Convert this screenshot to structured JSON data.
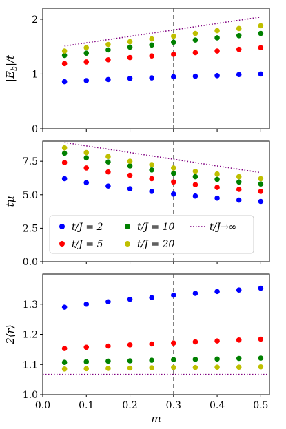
{
  "chart_data": [
    {
      "type": "scatter",
      "ylabel": "|E_b|/t",
      "xlabel": "",
      "xlim": [
        0.0,
        0.52
      ],
      "ylim": [
        0,
        2.2
      ],
      "yticks": [
        0,
        1,
        2
      ],
      "ytick_labels": [
        "0",
        "1",
        "2"
      ],
      "vline_x": 0.3,
      "grid": false,
      "x": [
        0.05,
        0.1,
        0.15,
        0.2,
        0.25,
        0.3,
        0.35,
        0.4,
        0.45,
        0.5
      ],
      "series": [
        {
          "name": "t/J = 2",
          "color": "#0000ff",
          "values": [
            0.86,
            0.88,
            0.9,
            0.92,
            0.93,
            0.95,
            0.96,
            0.97,
            0.99,
            1.0
          ]
        },
        {
          "name": "t/J = 5",
          "color": "#ff0000",
          "values": [
            1.19,
            1.22,
            1.26,
            1.3,
            1.33,
            1.36,
            1.39,
            1.42,
            1.45,
            1.48
          ]
        },
        {
          "name": "t/J = 10",
          "color": "#008000",
          "values": [
            1.34,
            1.38,
            1.44,
            1.49,
            1.53,
            1.58,
            1.62,
            1.66,
            1.7,
            1.74
          ]
        },
        {
          "name": "t/J = 20",
          "color": "#bfbf00",
          "values": [
            1.42,
            1.48,
            1.54,
            1.59,
            1.64,
            1.69,
            1.74,
            1.79,
            1.83,
            1.88
          ]
        }
      ],
      "limit_line": {
        "name": "t/J→∞",
        "color": "#800080",
        "x": [
          0.05,
          0.5
        ],
        "values": [
          1.51,
          2.04
        ]
      }
    },
    {
      "type": "scatter",
      "ylabel": "tμ",
      "xlabel": "",
      "xlim": [
        0.0,
        0.52
      ],
      "ylim": [
        0,
        9.0
      ],
      "yticks": [
        0.0,
        2.5,
        5.0,
        7.5
      ],
      "ytick_labels": [
        "0.0",
        "2.5",
        "5.0",
        "7.5"
      ],
      "vline_x": 0.3,
      "grid": false,
      "x": [
        0.05,
        0.1,
        0.15,
        0.2,
        0.25,
        0.3,
        0.35,
        0.4,
        0.45,
        0.5
      ],
      "series": [
        {
          "name": "t/J = 2",
          "color": "#0000ff",
          "values": [
            6.2,
            5.9,
            5.65,
            5.45,
            5.25,
            5.05,
            4.9,
            4.75,
            4.6,
            4.5
          ]
        },
        {
          "name": "t/J = 5",
          "color": "#ff0000",
          "values": [
            7.4,
            7.0,
            6.7,
            6.45,
            6.2,
            5.95,
            5.75,
            5.55,
            5.4,
            5.25
          ]
        },
        {
          "name": "t/J = 10",
          "color": "#008000",
          "values": [
            8.1,
            7.75,
            7.45,
            7.15,
            6.85,
            6.6,
            6.35,
            6.15,
            5.95,
            5.8
          ]
        },
        {
          "name": "t/J = 20",
          "color": "#bfbf00",
          "values": [
            8.5,
            8.15,
            7.85,
            7.5,
            7.25,
            7.0,
            6.75,
            6.55,
            6.35,
            6.2
          ]
        }
      ],
      "limit_line": {
        "name": "t/J→∞",
        "color": "#800080",
        "x": [
          0.05,
          0.5
        ],
        "values": [
          8.9,
          6.65
        ]
      }
    },
    {
      "type": "scatter",
      "ylabel": "2⟨r⟩",
      "xlabel": "m",
      "xlim": [
        0.0,
        0.52
      ],
      "ylim": [
        1.0,
        1.4
      ],
      "yticks": [
        1.0,
        1.1,
        1.2,
        1.3
      ],
      "ytick_labels": [
        "1.0",
        "1.1",
        "1.2",
        "1.3"
      ],
      "xticks": [
        0.0,
        0.1,
        0.2,
        0.3,
        0.4,
        0.5
      ],
      "xtick_labels": [
        "0.0",
        "0.1",
        "0.2",
        "0.3",
        "0.4",
        "0.5"
      ],
      "vline_x": 0.3,
      "grid": false,
      "x": [
        0.05,
        0.1,
        0.15,
        0.2,
        0.25,
        0.3,
        0.35,
        0.4,
        0.45,
        0.5
      ],
      "series": [
        {
          "name": "t/J = 2",
          "color": "#0000ff",
          "values": [
            1.29,
            1.3,
            1.308,
            1.316,
            1.322,
            1.33,
            1.336,
            1.342,
            1.347,
            1.353
          ]
        },
        {
          "name": "t/J = 5",
          "color": "#ff0000",
          "values": [
            1.153,
            1.157,
            1.161,
            1.165,
            1.168,
            1.171,
            1.175,
            1.178,
            1.181,
            1.184
          ]
        },
        {
          "name": "t/J = 10",
          "color": "#008000",
          "values": [
            1.107,
            1.109,
            1.111,
            1.112,
            1.114,
            1.116,
            1.117,
            1.118,
            1.12,
            1.121
          ]
        },
        {
          "name": "t/J = 20",
          "color": "#bfbf00",
          "values": [
            1.085,
            1.086,
            1.087,
            1.088,
            1.089,
            1.09,
            1.09,
            1.091,
            1.091,
            1.092
          ]
        }
      ],
      "limit_line": {
        "name": "t/J→∞",
        "color": "#800080",
        "x": [
          0.0,
          0.52
        ],
        "values": [
          1.067,
          1.067
        ]
      }
    }
  ],
  "legend": {
    "placement": "inside middle panel, lower",
    "entries": [
      {
        "label": "t/J = 2",
        "color": "#0000ff",
        "marker": "dot"
      },
      {
        "label": "t/J = 10",
        "color": "#008000",
        "marker": "dot"
      },
      {
        "label": "t/J→∞",
        "color": "#800080",
        "marker": "dotted-line"
      },
      {
        "label": "t/J = 5",
        "color": "#ff0000",
        "marker": "dot"
      },
      {
        "label": "t/J = 20",
        "color": "#bfbf00",
        "marker": "dot"
      }
    ]
  }
}
